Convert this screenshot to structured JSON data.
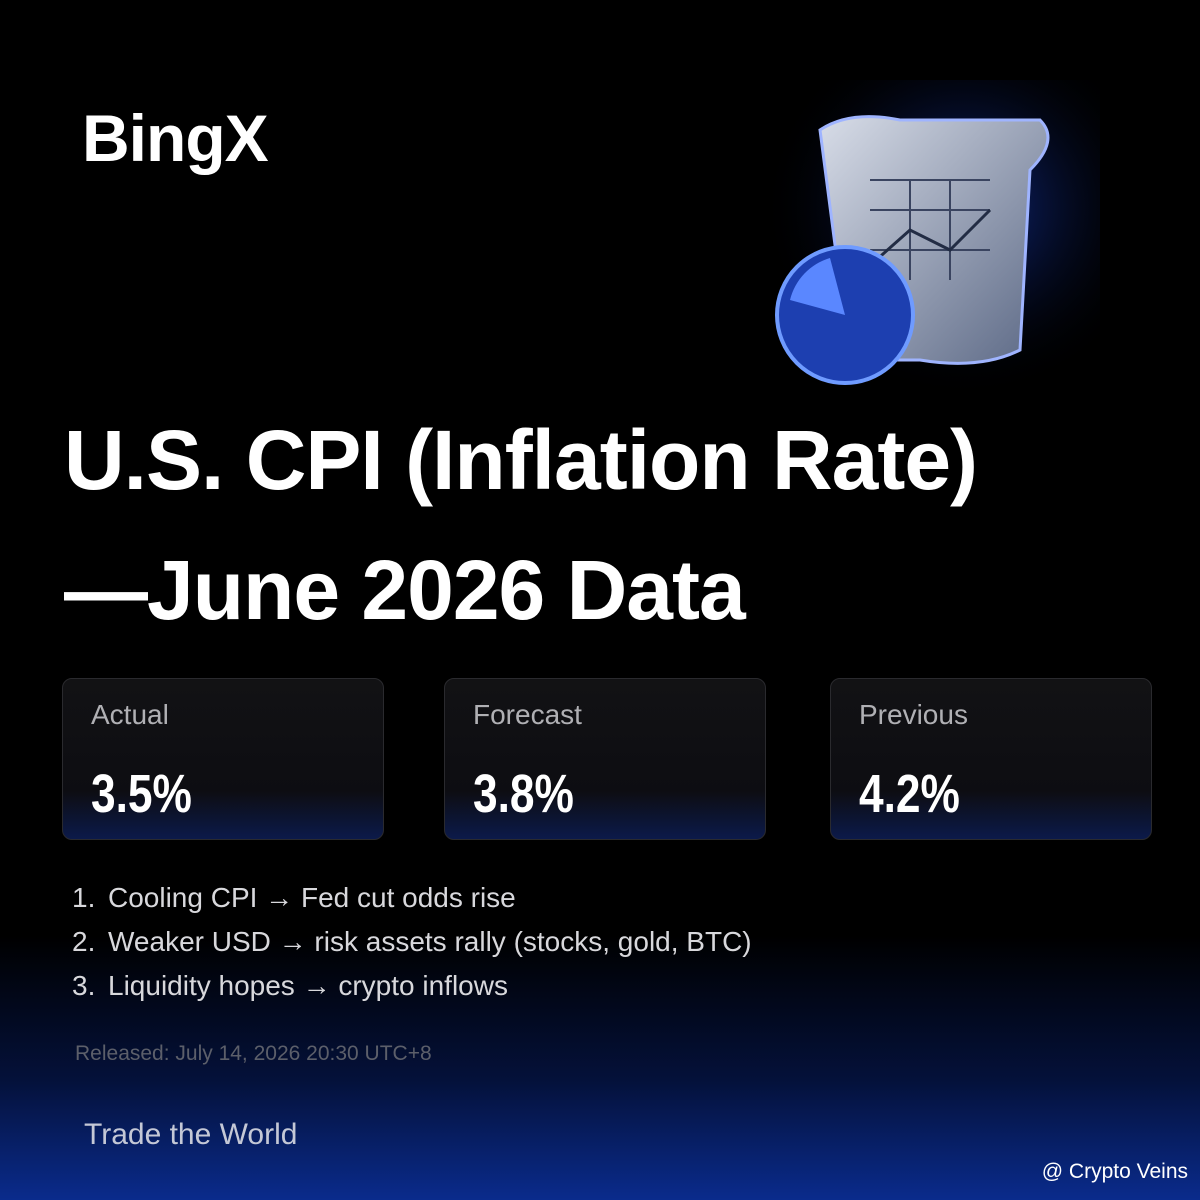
{
  "brand": "BingX",
  "title": {
    "lines": [
      "U.S. CPI (Inflation Rate)",
      "—June 2026 Data"
    ]
  },
  "cards": [
    {
      "label": "Actual",
      "value": "3.5%"
    },
    {
      "label": "Forecast",
      "value": "3.8%"
    },
    {
      "label": "Previous",
      "value": "4.2%"
    }
  ],
  "points": [
    {
      "number": "1.",
      "text": "Cooling CPI → Fed cut odds rise"
    },
    {
      "number": "2.",
      "text": "Weaker USD → risk assets rally (stocks, gold, BTC)"
    },
    {
      "number": "3.",
      "text": "Liquidity hopes → crypto inflows"
    }
  ],
  "released": "Released: July 14, 2026 20:30 UTC+8",
  "tagline": "Trade the World",
  "watermark": "@ Crypto Veins"
}
